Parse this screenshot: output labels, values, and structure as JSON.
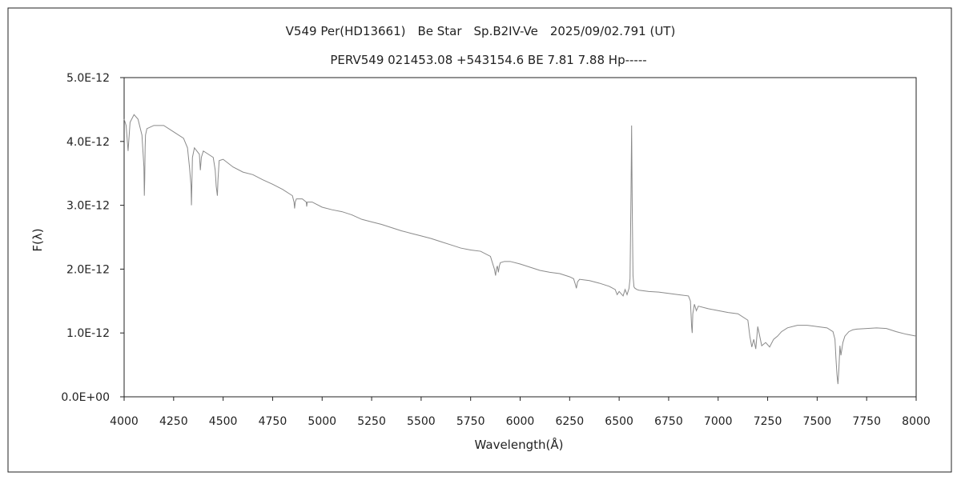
{
  "chart_data": {
    "type": "line",
    "title": "V549 Per(HD13661)　Be Star　Sp.B2IV-Ve　2025/09/02.791 (UT)",
    "subtitle": "PERV549 021453.08 +543154.6 BE 7.81 7.88 Hp-----",
    "xlabel": "Wavelength(Å)",
    "ylabel": "F(λ)",
    "xlim": [
      4000,
      8000
    ],
    "ylim": [
      0,
      5e-12
    ],
    "xticks": [
      "4000",
      "4250",
      "4500",
      "4750",
      "5000",
      "5250",
      "5500",
      "5750",
      "6000",
      "6250",
      "6500",
      "6750",
      "7000",
      "7250",
      "7500",
      "7750",
      "8000"
    ],
    "yticks": [
      "0.0E+00",
      "1.0E-12",
      "2.0E-12",
      "3.0E-12",
      "4.0E-12",
      "5.0E-12"
    ],
    "grid": false,
    "line_color": "#8a8a8a",
    "series": [
      {
        "x": [
          4000,
          4010,
          4020,
          4030,
          4050,
          4070,
          4090,
          4100,
          4102,
          4104,
          4106,
          4108,
          4115,
          4150,
          4200,
          4250,
          4300,
          4320,
          4330,
          4338,
          4340,
          4342,
          4345,
          4355,
          4380,
          4385,
          4390,
          4400,
          4450,
          4460,
          4465,
          4471,
          4474,
          4480,
          4500,
          4550,
          4600,
          4650,
          4700,
          4750,
          4800,
          4850,
          4858,
          4861,
          4864,
          4870,
          4900,
          4920,
          4922,
          4925,
          4950,
          5000,
          5050,
          5100,
          5150,
          5200,
          5250,
          5300,
          5350,
          5400,
          5450,
          5500,
          5550,
          5600,
          5650,
          5700,
          5750,
          5800,
          5850,
          5870,
          5876,
          5880,
          5885,
          5890,
          5895,
          5900,
          5920,
          5950,
          6000,
          6050,
          6100,
          6150,
          6200,
          6250,
          6270,
          6280,
          6284,
          6290,
          6300,
          6350,
          6400,
          6450,
          6480,
          6490,
          6500,
          6520,
          6530,
          6540,
          6550,
          6555,
          6560,
          6563,
          6566,
          6570,
          6575,
          6580,
          6590,
          6600,
          6650,
          6700,
          6750,
          6800,
          6850,
          6860,
          6866,
          6869,
          6872,
          6880,
          6890,
          6900,
          6950,
          7000,
          7050,
          7100,
          7150,
          7160,
          7170,
          7180,
          7190,
          7200,
          7220,
          7240,
          7260,
          7280,
          7300,
          7320,
          7350,
          7400,
          7450,
          7500,
          7550,
          7580,
          7590,
          7595,
          7600,
          7605,
          7610,
          7615,
          7620,
          7630,
          7640,
          7660,
          7680,
          7700,
          7750,
          7800,
          7850,
          7900,
          7950,
          8000
        ],
        "y": [
          4.35e-12,
          4.25e-12,
          3.85e-12,
          4.3e-12,
          4.42e-12,
          4.35e-12,
          4.1e-12,
          3.6e-12,
          3.15e-12,
          3.4e-12,
          3.9e-12,
          4.1e-12,
          4.2e-12,
          4.25e-12,
          4.25e-12,
          4.15e-12,
          4.05e-12,
          3.9e-12,
          3.6e-12,
          3.3e-12,
          3e-12,
          3.3e-12,
          3.75e-12,
          3.9e-12,
          3.8e-12,
          3.55e-12,
          3.75e-12,
          3.85e-12,
          3.75e-12,
          3.55e-12,
          3.3e-12,
          3.15e-12,
          3.4e-12,
          3.7e-12,
          3.72e-12,
          3.6e-12,
          3.52e-12,
          3.48e-12,
          3.4e-12,
          3.33e-12,
          3.25e-12,
          3.15e-12,
          3.05e-12,
          2.95e-12,
          3.05e-12,
          3.1e-12,
          3.1e-12,
          3.05e-12,
          2.98e-12,
          3.05e-12,
          3.05e-12,
          2.97e-12,
          2.93e-12,
          2.9e-12,
          2.85e-12,
          2.78e-12,
          2.74e-12,
          2.7e-12,
          2.65e-12,
          2.6e-12,
          2.56e-12,
          2.52e-12,
          2.48e-12,
          2.43e-12,
          2.38e-12,
          2.33e-12,
          2.3e-12,
          2.28e-12,
          2.2e-12,
          2e-12,
          1.9e-12,
          2e-12,
          2.05e-12,
          1.95e-12,
          2.05e-12,
          2.1e-12,
          2.12e-12,
          2.12e-12,
          2.08e-12,
          2.03e-12,
          1.98e-12,
          1.95e-12,
          1.93e-12,
          1.88e-12,
          1.85e-12,
          1.75e-12,
          1.7e-12,
          1.8e-12,
          1.84e-12,
          1.82e-12,
          1.78e-12,
          1.73e-12,
          1.68e-12,
          1.6e-12,
          1.65e-12,
          1.58e-12,
          1.68e-12,
          1.6e-12,
          1.7e-12,
          1.85e-12,
          3.2e-12,
          4.25e-12,
          3e-12,
          1.9e-12,
          1.72e-12,
          1.7e-12,
          1.68e-12,
          1.67e-12,
          1.65e-12,
          1.64e-12,
          1.62e-12,
          1.6e-12,
          1.58e-12,
          1.5e-12,
          1.1e-12,
          1e-12,
          1.3e-12,
          1.45e-12,
          1.35e-12,
          1.42e-12,
          1.38e-12,
          1.35e-12,
          1.32e-12,
          1.3e-12,
          1.2e-12,
          9.5e-13,
          7.8e-13,
          9e-13,
          7.5e-13,
          1.1e-12,
          8e-13,
          8.5e-13,
          7.8e-13,
          9e-13,
          9.5e-13,
          1.02e-12,
          1.08e-12,
          1.12e-12,
          1.12e-12,
          1.1e-12,
          1.08e-12,
          1.02e-12,
          9e-13,
          6e-13,
          3.5e-13,
          2e-13,
          4.5e-13,
          8e-13,
          6.5e-13,
          8.5e-13,
          9.5e-13,
          1.02e-12,
          1.05e-12,
          1.06e-12,
          1.07e-12,
          1.08e-12,
          1.07e-12,
          1.02e-12,
          9.8e-13,
          9.5e-13
        ]
      }
    ]
  }
}
